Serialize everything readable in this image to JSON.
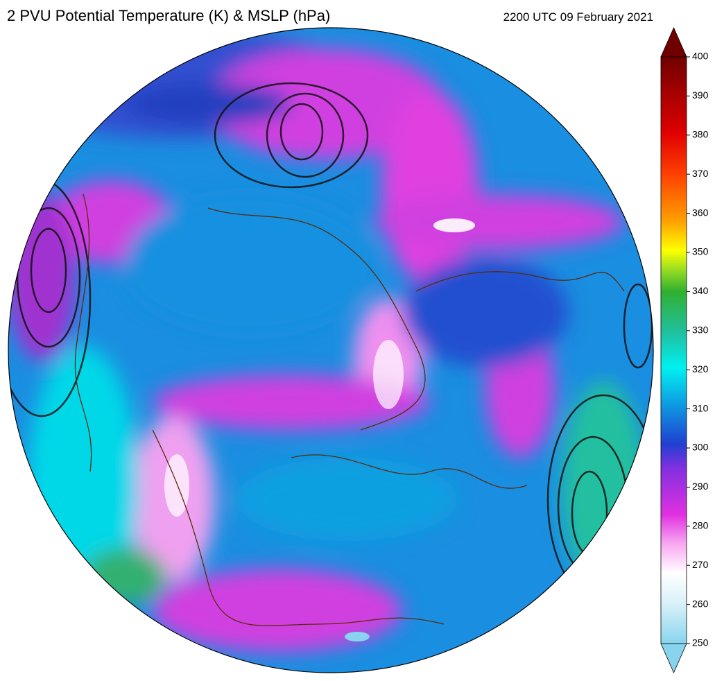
{
  "title": "2 PVU Potential Temperature (K) & MSLP (hPa)",
  "timestamp": "2200 UTC 09 February 2021",
  "colorbar": {
    "range": [
      250,
      400
    ],
    "ticks": [
      250,
      260,
      270,
      280,
      290,
      300,
      310,
      320,
      330,
      340,
      350,
      360,
      370,
      380,
      390,
      400
    ]
  }
}
